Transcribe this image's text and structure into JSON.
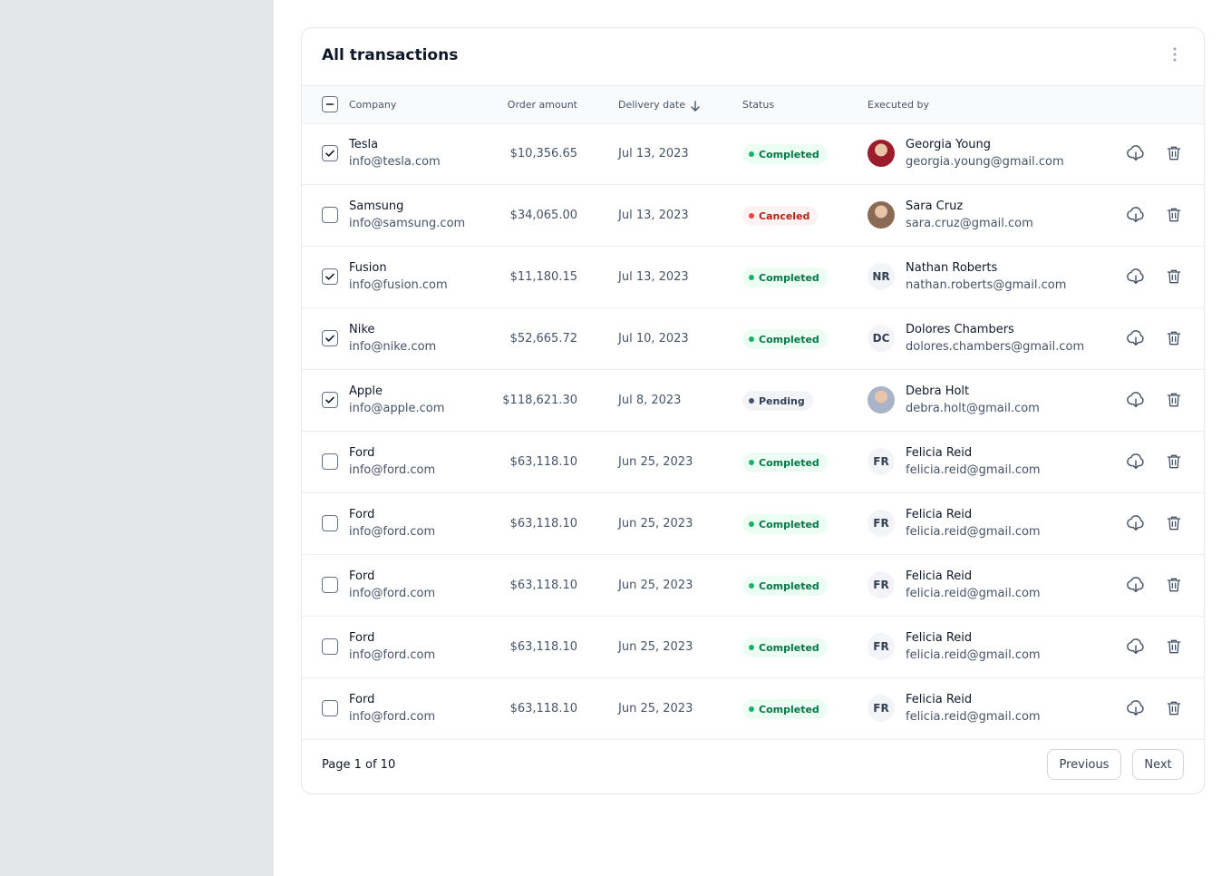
{
  "header": {
    "title": "All transactions"
  },
  "table": {
    "columns": [
      "Company",
      "Order amount",
      "Delivery date",
      "Status",
      "Executed by"
    ],
    "rows": [
      {
        "selected": true,
        "company": "Tesla",
        "company_email": "info@tesla.com",
        "amount": "$10,356.65",
        "date": "Jul 13, 2023",
        "status": "Completed",
        "status_color": "#17b26a",
        "status_bg": "#ecfdf3",
        "status_text": "#067647",
        "executed_by": "Georgia Young",
        "executed_email": "georgia.young@gmail.com",
        "avatar_color": "#9b1c2a"
      },
      {
        "selected": false,
        "company": "Samsung",
        "company_email": "info@samsung.com",
        "amount": "$34,065.00",
        "date": "Jul 13, 2023",
        "status": "Canceled",
        "status_color": "#f04438",
        "status_bg": "#fef3f2",
        "status_text": "#b42318",
        "executed_by": "Sara Cruz",
        "executed_email": "sara.cruz@gmail.com",
        "avatar_color": "#8a6a55"
      },
      {
        "selected": true,
        "company": "Fusion",
        "company_email": "info@fusion.com",
        "amount": "$11,180.15",
        "date": "Jul 13, 2023",
        "status": "Completed",
        "status_color": "#17b26a",
        "status_bg": "#ecfdf3",
        "status_text": "#067647",
        "executed_by": "Nathan Roberts",
        "executed_email": "nathan.roberts@gmail.com",
        "avatar_initials": "NR"
      },
      {
        "selected": true,
        "company": "Nike",
        "company_email": "info@nike.com",
        "amount": "$52,665.72",
        "date": "Jul 10, 2023",
        "status": "Completed",
        "status_color": "#17b26a",
        "status_bg": "#ecfdf3",
        "status_text": "#067647",
        "executed_by": "Dolores Chambers",
        "executed_email": "dolores.chambers@gmail.com",
        "avatar_initials": "DC"
      },
      {
        "selected": true,
        "company": "Apple",
        "company_email": "info@apple.com",
        "amount": "$118,621.30",
        "date": "Jul 8, 2023",
        "status": "Pending",
        "status_color": "#475467",
        "status_bg": "#f2f4f7",
        "status_text": "#344054",
        "executed_by": "Debra Holt",
        "executed_email": "debra.holt@gmail.com",
        "avatar_color": "#a9b4c8"
      },
      {
        "selected": false,
        "company": "Ford",
        "company_email": "info@ford.com",
        "amount": "$63,118.10",
        "date": "Jun 25, 2023",
        "status": "Completed",
        "status_color": "#17b26a",
        "status_bg": "#ecfdf3",
        "status_text": "#067647",
        "executed_by": "Felicia Reid",
        "executed_email": "felicia.reid@gmail.com",
        "avatar_initials": "FR"
      },
      {
        "selected": false,
        "company": "Ford",
        "company_email": "info@ford.com",
        "amount": "$63,118.10",
        "date": "Jun 25, 2023",
        "status": "Completed",
        "status_color": "#17b26a",
        "status_bg": "#ecfdf3",
        "status_text": "#067647",
        "executed_by": "Felicia Reid",
        "executed_email": "felicia.reid@gmail.com",
        "avatar_initials": "FR"
      },
      {
        "selected": false,
        "company": "Ford",
        "company_email": "info@ford.com",
        "amount": "$63,118.10",
        "date": "Jun 25, 2023",
        "status": "Completed",
        "status_color": "#17b26a",
        "status_bg": "#ecfdf3",
        "status_text": "#067647",
        "executed_by": "Felicia Reid",
        "executed_email": "felicia.reid@gmail.com",
        "avatar_initials": "FR"
      },
      {
        "selected": false,
        "company": "Ford",
        "company_email": "info@ford.com",
        "amount": "$63,118.10",
        "date": "Jun 25, 2023",
        "status": "Completed",
        "status_color": "#17b26a",
        "status_bg": "#ecfdf3",
        "status_text": "#067647",
        "executed_by": "Felicia Reid",
        "executed_email": "felicia.reid@gmail.com",
        "avatar_initials": "FR"
      },
      {
        "selected": false,
        "company": "Ford",
        "company_email": "info@ford.com",
        "amount": "$63,118.10",
        "date": "Jun 25, 2023",
        "status": "Completed",
        "status_color": "#17b26a",
        "status_bg": "#ecfdf3",
        "status_text": "#067647",
        "executed_by": "Felicia Reid",
        "executed_email": "felicia.reid@gmail.com",
        "avatar_initials": "FR"
      }
    ]
  },
  "footer": {
    "page": "Page 1 of 10",
    "previous": "Previous",
    "next": "Next"
  }
}
